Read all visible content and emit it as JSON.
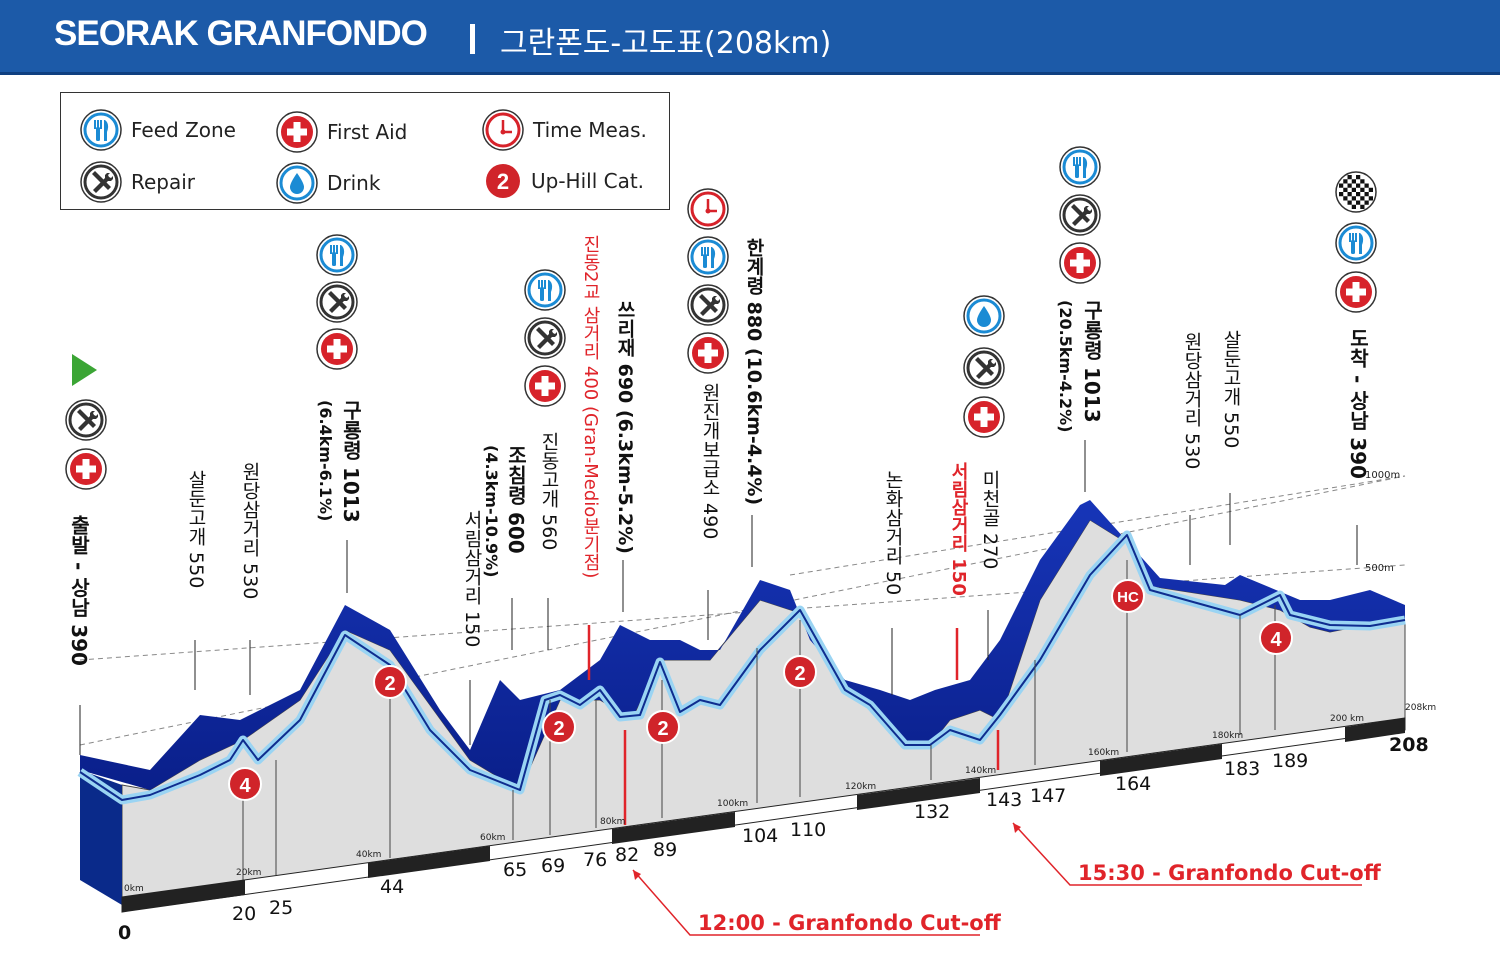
{
  "header": {
    "title": "SEORAK GRANFONDO",
    "subtitle": "그란폰도-고도표(208km)"
  },
  "legend": {
    "feed_zone": "Feed Zone",
    "first_aid": "First Aid",
    "time_meas": "Time Meas.",
    "repair": "Repair",
    "drink": "Drink",
    "uphill_cat": "Up-Hill Cat.",
    "uphill_cat_example": "2"
  },
  "elevation_labels": {
    "m1000": "1000m",
    "m500": "500m"
  },
  "waypoints": {
    "start": "출발 - 상남 390",
    "salungogae1": "살둔고개 550",
    "wondang1": "원당삼거리 530",
    "guryong1": "구룡령 1013",
    "guryong1_sub": "(6.4km-6.1%)",
    "seorim1": "서림삼거리 150",
    "jochim": "조침령 600",
    "jochim_sub": "(4.3km-10.9%)",
    "jindong_pass": "진동고개 560",
    "jindong_junction": "진동2교 삼거리 400 (Gran-Medio분기점)",
    "ssiri": "쓰리재 690 (6.3km-5.2%)",
    "wonjin": "원진개보급소 490",
    "hangye": "한계령 880 (10.6km-4.4%)",
    "nonhwa": "논화삼거리 50",
    "seorim2": "서림삼거리 150",
    "micheon": "미천골 270",
    "guryong2": "구룡령 1013",
    "guryong2_sub": "(20.5km-4.2%)",
    "wondang2": "원당삼거리 530",
    "salungogae2": "살둔고개 550",
    "finish": "도착 - 상남 390"
  },
  "km_ticks": [
    "0km",
    "20km",
    "40km",
    "60km",
    "80km",
    "100km",
    "120km",
    "140km",
    "160km",
    "180km",
    "200 km",
    "208km"
  ],
  "distances": [
    "0",
    "20",
    "25",
    "44",
    "65",
    "69",
    "76",
    "82",
    "89",
    "104",
    "110",
    "132",
    "143",
    "147",
    "164",
    "183",
    "189",
    "208"
  ],
  "climb_cats": [
    "4",
    "2",
    "2",
    "2",
    "2",
    "HC",
    "4"
  ],
  "cutoffs": {
    "first": "12:00 - Granfondo Cut-off",
    "second": "15:30 - Granfondo Cut-off"
  },
  "colors": {
    "header": "#1c5aa8",
    "profile_dark": "#0a2a8a",
    "profile_light": "#8fd0f2",
    "red": "#e0242a",
    "ground": "#dcdcdc"
  }
}
